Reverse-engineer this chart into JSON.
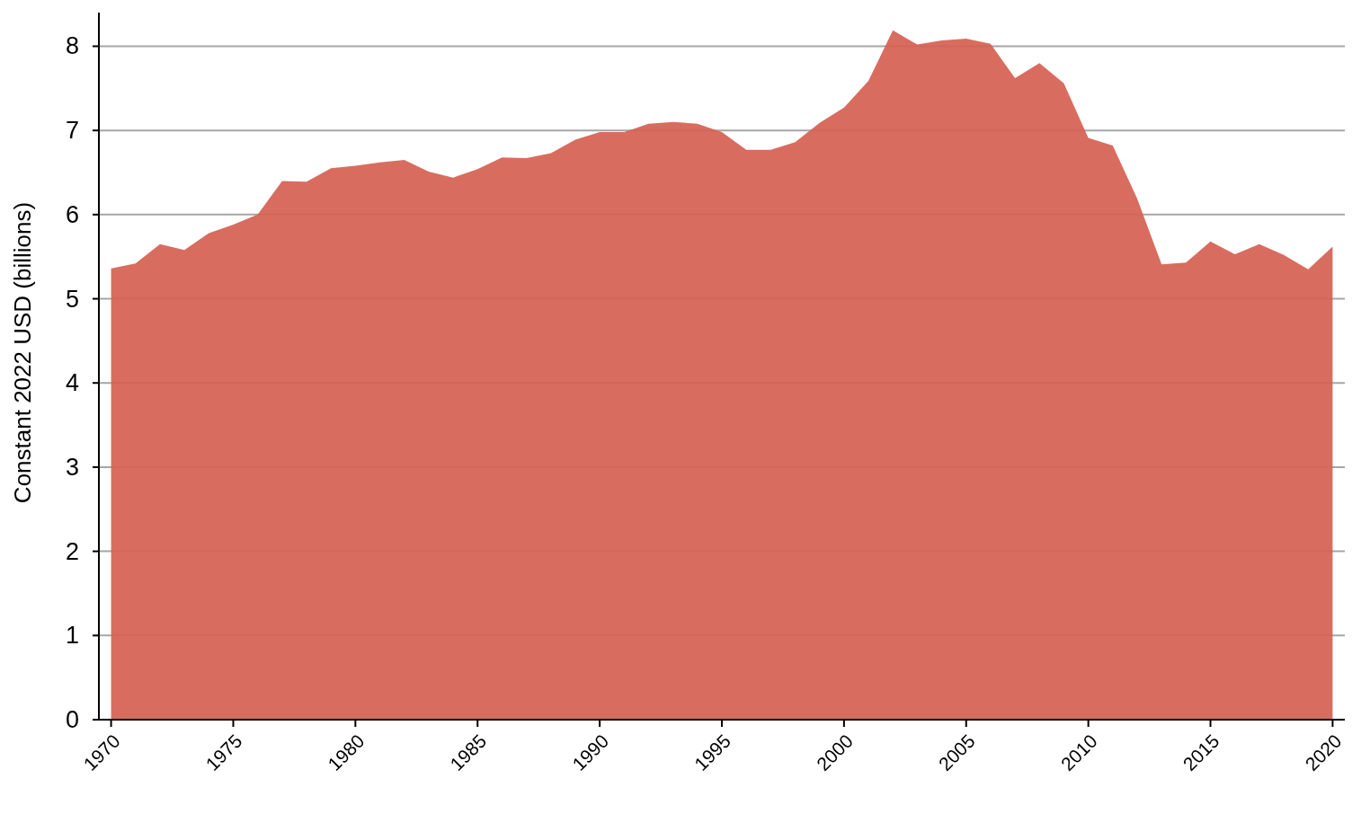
{
  "chart_data": {
    "type": "area",
    "ylabel": "Constant 2022 USD (billions)",
    "x": [
      1970,
      1971,
      1972,
      1973,
      1974,
      1975,
      1976,
      1977,
      1978,
      1979,
      1980,
      1981,
      1982,
      1983,
      1984,
      1985,
      1986,
      1987,
      1988,
      1989,
      1990,
      1991,
      1992,
      1993,
      1994,
      1995,
      1996,
      1997,
      1998,
      1999,
      2000,
      2001,
      2002,
      2003,
      2004,
      2005,
      2006,
      2007,
      2008,
      2009,
      2010,
      2011,
      2012,
      2013,
      2014,
      2015,
      2016,
      2017,
      2018,
      2019,
      2020
    ],
    "series": [
      {
        "color": "#d56253",
        "values": [
          5.36,
          5.42,
          5.65,
          5.58,
          5.78,
          5.88,
          6.0,
          6.4,
          6.39,
          6.55,
          6.58,
          6.62,
          6.65,
          6.51,
          6.44,
          6.54,
          6.68,
          6.67,
          6.73,
          6.89,
          6.98,
          6.98,
          7.08,
          7.1,
          7.08,
          6.98,
          6.77,
          6.77,
          6.86,
          7.09,
          7.27,
          7.59,
          8.19,
          8.02,
          8.07,
          8.09,
          8.03,
          7.62,
          7.8,
          7.56,
          6.91,
          6.82,
          6.19,
          5.41,
          5.43,
          5.68,
          5.53,
          5.65,
          5.52,
          5.35,
          5.62
        ]
      }
    ],
    "xlim": [
      1969.5,
      2020.5
    ],
    "ylim": [
      0,
      8.4
    ],
    "xticks": [
      1970,
      1975,
      1980,
      1985,
      1990,
      1995,
      2000,
      2005,
      2010,
      2015,
      2020
    ],
    "yticks": [
      0,
      1,
      2,
      3,
      4,
      5,
      6,
      7,
      8
    ],
    "grid": "y"
  }
}
